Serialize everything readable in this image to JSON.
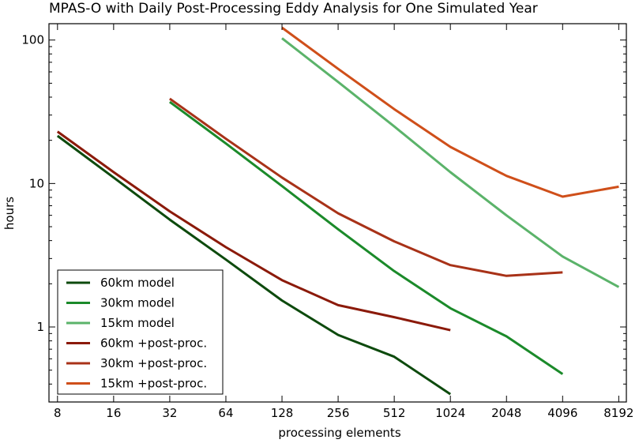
{
  "chart_data": {
    "type": "line",
    "title": "MPAS-O with Daily Post-Processing Eddy Analysis for One Simulated Year",
    "xlabel": "processing elements",
    "ylabel": "hours",
    "x_scale": "log2",
    "y_scale": "log10",
    "xlim": [
      7.2,
      9000
    ],
    "ylim": [
      0.3,
      130
    ],
    "x_ticks": [
      8,
      16,
      32,
      64,
      128,
      256,
      512,
      1024,
      2048,
      4096,
      8192
    ],
    "x_tick_labels": [
      "8",
      "16",
      "32",
      "64",
      "128",
      "256",
      "512",
      "1024",
      "2048",
      "4096",
      "8192"
    ],
    "y_ticks": [
      1,
      10,
      100
    ],
    "y_tick_labels": [
      "1",
      "10",
      "100"
    ],
    "grid": false,
    "legend_position": "lower-left",
    "series": [
      {
        "name": "60km model",
        "color": "#0d4a0d",
        "x": [
          8,
          16,
          32,
          64,
          128,
          256,
          512,
          1024
        ],
        "y": [
          21.5,
          11.0,
          5.6,
          2.95,
          1.53,
          0.88,
          0.62,
          0.34
        ]
      },
      {
        "name": "30km model",
        "color": "#1b8a2a",
        "x": [
          32,
          64,
          128,
          256,
          512,
          1024,
          2048,
          4096
        ],
        "y": [
          37,
          19,
          9.6,
          4.8,
          2.45,
          1.35,
          0.86,
          0.47
        ]
      },
      {
        "name": "15km model",
        "color": "#5bb36a",
        "x": [
          128,
          256,
          512,
          1024,
          2048,
          4096,
          8192
        ],
        "y": [
          103,
          51,
          25,
          12,
          6.0,
          3.1,
          1.9
        ]
      },
      {
        "name": "60km +post-proc.",
        "color": "#8b1a0a",
        "x": [
          8,
          16,
          32,
          64,
          128,
          256,
          512,
          1024
        ],
        "y": [
          23,
          12,
          6.4,
          3.6,
          2.12,
          1.42,
          1.17,
          0.95
        ]
      },
      {
        "name": "30km +post-proc.",
        "color": "#a83218",
        "x": [
          32,
          64,
          128,
          256,
          512,
          1024,
          2048,
          4096
        ],
        "y": [
          39,
          20.5,
          11,
          6.2,
          3.95,
          2.7,
          2.27,
          2.4
        ]
      },
      {
        "name": "15km +post-proc.",
        "color": "#cf4f1a",
        "x": [
          128,
          256,
          512,
          1024,
          2048,
          4096,
          8192
        ],
        "y": [
          122,
          63,
          33,
          18,
          11.3,
          8.1,
          9.5
        ]
      }
    ]
  }
}
